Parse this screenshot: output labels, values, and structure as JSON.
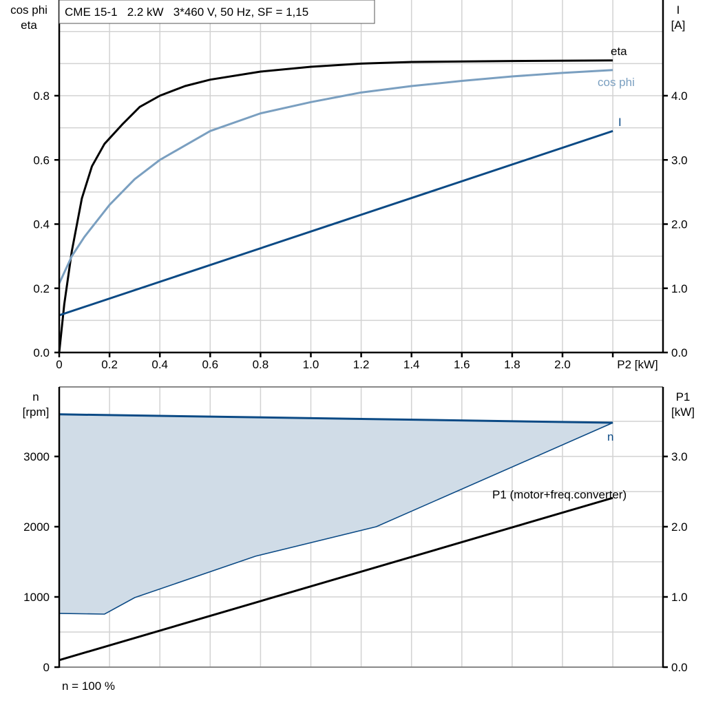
{
  "chart_data": [
    {
      "type": "line",
      "title": "CME 15-1   2.2 kW   3*460 V, 50 Hz, SF = 1,15",
      "xlabel": "P2 [kW]",
      "ylabel_left": [
        "cos phi",
        "eta"
      ],
      "ylabel_right": [
        "I",
        "[A]"
      ],
      "xlim": [
        0,
        2.2
      ],
      "ylim_left": [
        0,
        1.1
      ],
      "ylim_right": [
        0,
        5.5
      ],
      "x_ticks": [
        "0",
        "0.2",
        "0.4",
        "0.6",
        "0.8",
        "1.0",
        "1.2",
        "1.4",
        "1.6",
        "1.8",
        "2.0"
      ],
      "x_tick_values": [
        0,
        0.2,
        0.4,
        0.6,
        0.8,
        1.0,
        1.2,
        1.4,
        1.6,
        1.8,
        2.0
      ],
      "y_left_ticks": [
        "0.0",
        "0.2",
        "0.4",
        "0.6",
        "0.8"
      ],
      "y_left_tick_values": [
        0,
        0.2,
        0.4,
        0.6,
        0.8
      ],
      "y_right_ticks": [
        "0.0",
        "1.0",
        "2.0",
        "3.0",
        "4.0"
      ],
      "y_right_tick_values": [
        0,
        1,
        2,
        3,
        4
      ],
      "grid": true,
      "series": [
        {
          "name": "eta",
          "axis": "left",
          "color": "#000000",
          "x": [
            0,
            0.02,
            0.05,
            0.09,
            0.13,
            0.18,
            0.25,
            0.32,
            0.4,
            0.5,
            0.6,
            0.8,
            1.0,
            1.2,
            1.4,
            1.8,
            2.2
          ],
          "y": [
            0,
            0.15,
            0.315,
            0.48,
            0.58,
            0.65,
            0.71,
            0.765,
            0.8,
            0.83,
            0.85,
            0.875,
            0.89,
            0.9,
            0.905,
            0.908,
            0.91
          ]
        },
        {
          "name": "cos phi",
          "axis": "left",
          "color": "#7a9fc0",
          "x": [
            0,
            0.05,
            0.1,
            0.2,
            0.3,
            0.4,
            0.6,
            0.8,
            1.0,
            1.2,
            1.4,
            1.6,
            1.8,
            2.0,
            2.2
          ],
          "y": [
            0.215,
            0.3,
            0.36,
            0.46,
            0.54,
            0.6,
            0.69,
            0.745,
            0.78,
            0.81,
            0.83,
            0.846,
            0.86,
            0.871,
            0.88
          ]
        },
        {
          "name": "I",
          "axis": "right",
          "color": "#0b4a85",
          "x": [
            0,
            2.2
          ],
          "y": [
            0.58,
            3.45
          ]
        }
      ]
    },
    {
      "type": "area",
      "xlabel": "",
      "ylabel_left": [
        "n",
        "[rpm]"
      ],
      "ylabel_right": [
        "P1",
        "[kW]"
      ],
      "xlim": [
        0,
        2.2
      ],
      "ylim_left": [
        0,
        3900
      ],
      "ylim_right": [
        0,
        3.9
      ],
      "y_left_ticks": [
        "0",
        "1000",
        "2000",
        "3000"
      ],
      "y_left_tick_values": [
        0,
        1000,
        2000,
        3000
      ],
      "y_right_ticks": [
        "0.0",
        "1.0",
        "2.0",
        "3.0"
      ],
      "y_right_tick_values": [
        0,
        1,
        2,
        3
      ],
      "grid": true,
      "footnote": "n = 100 %",
      "series": [
        {
          "name": "n",
          "axis": "left",
          "color": "#0b4a85",
          "fill": "#d0dce7",
          "x_upper": [
            0,
            2.2
          ],
          "y_upper": [
            3600,
            3480
          ],
          "x_lower": [
            0,
            0.18,
            0.3,
            0.78,
            1.26,
            2.2
          ],
          "y_lower": [
            765,
            755,
            990,
            1580,
            2000,
            3480
          ]
        },
        {
          "name": "P1 (motor+freq.converter)",
          "axis": "right",
          "color": "#000000",
          "x": [
            0,
            2.2
          ],
          "y": [
            0.1,
            2.41
          ]
        }
      ]
    }
  ]
}
